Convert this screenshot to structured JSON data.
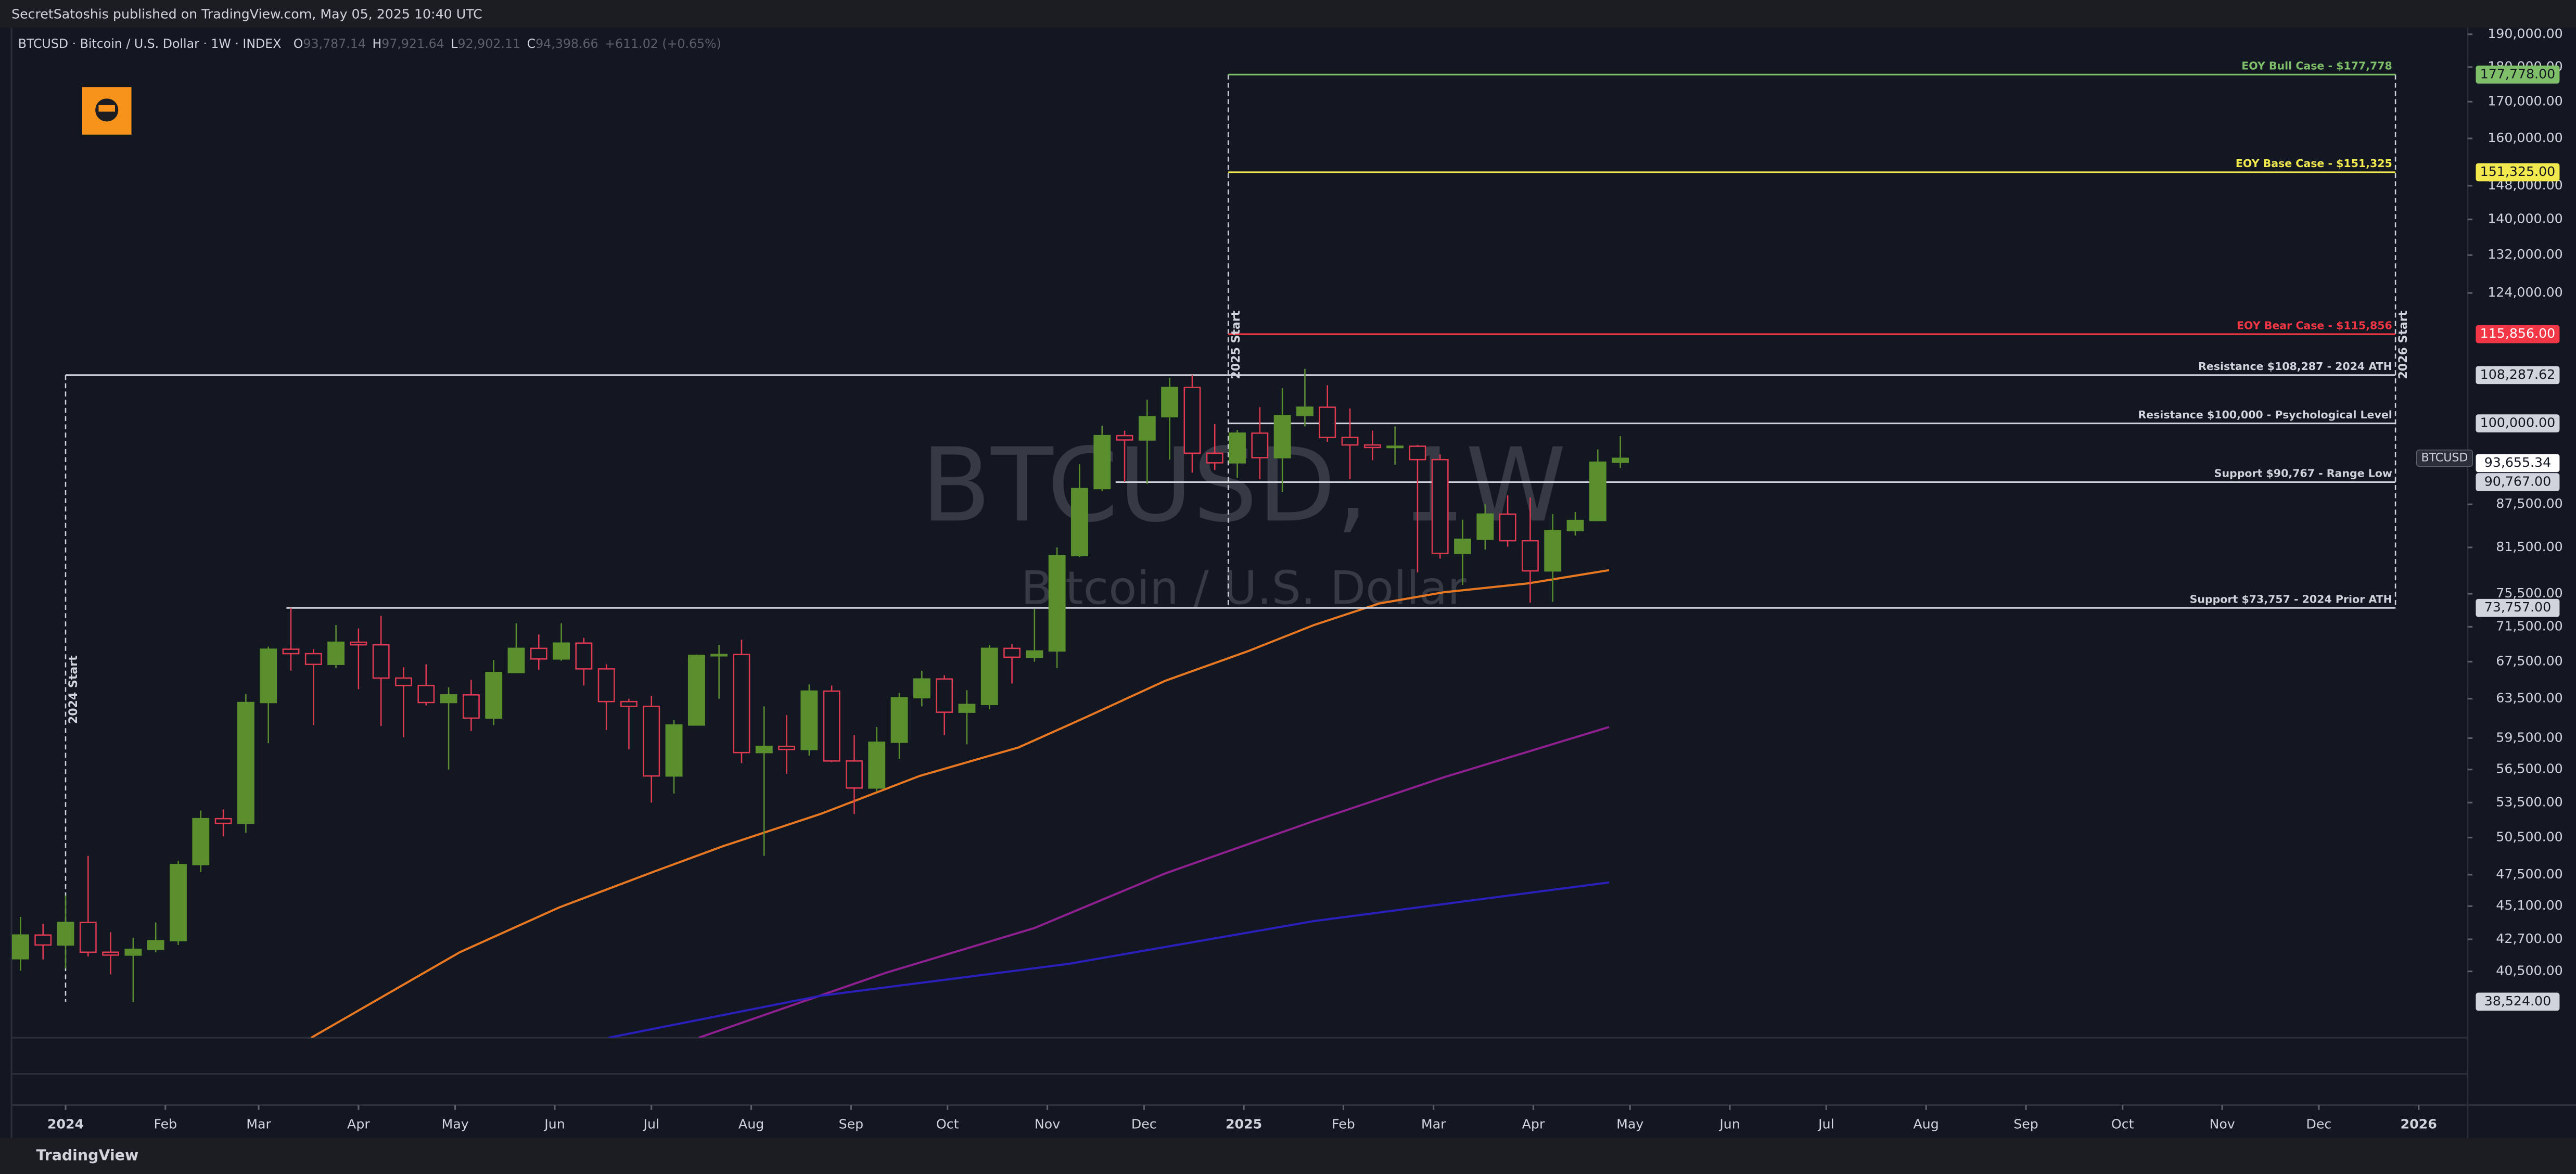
{
  "header": {
    "published": "SecretSatoshis published on TradingView.com, May 05, 2025 10:40 UTC",
    "symbol": "BTCUSD · Bitcoin / U.S. Dollar · 1W · INDEX",
    "ohlc": [
      {
        "key": "O",
        "value": "93,787.14"
      },
      {
        "key": "H",
        "value": "97,921.64"
      },
      {
        "key": "L",
        "value": "92,902.11"
      },
      {
        "key": "C",
        "value": "94,398.66"
      }
    ],
    "change": "+611.02 (+0.65%)"
  },
  "footer": "TradingView",
  "chart_data": {
    "type": "candlestick",
    "title": "BTCUSD, 1W",
    "subtitle": "Bitcoin / U.S. Dollar",
    "x": [
      -2,
      -1,
      0,
      1,
      2,
      3,
      4,
      5,
      6,
      7,
      8,
      9,
      10,
      11,
      12,
      13,
      14,
      15,
      16,
      17,
      18,
      19,
      20,
      21,
      22,
      23,
      24,
      25,
      26,
      27,
      28,
      29,
      30,
      31,
      32,
      33,
      34,
      35,
      36,
      37,
      38,
      39,
      40,
      41,
      42,
      43,
      44,
      45,
      46,
      47,
      48,
      49,
      50,
      51,
      52,
      53,
      54,
      55,
      56,
      57,
      58,
      59,
      60,
      61,
      62,
      63,
      64,
      65,
      66,
      67,
      68,
      69
    ],
    "open": [
      41350,
      43000,
      42300,
      43900,
      41800,
      41600,
      42000,
      42600,
      48300,
      52100,
      51700,
      63100,
      68900,
      68400,
      67200,
      69700,
      69400,
      65700,
      64900,
      63100,
      63900,
      61500,
      66300,
      69000,
      67800,
      69600,
      66700,
      63200,
      62700,
      55900,
      60800,
      68200,
      68300,
      58100,
      58700,
      58400,
      64300,
      57300,
      54800,
      59100,
      63600,
      65600,
      62100,
      62900,
      69000,
      68000,
      68700,
      80400,
      89800,
      98000,
      97300,
      101100,
      106100,
      95200,
      93700,
      98400,
      94500,
      101300,
      102700,
      97700,
      96500,
      96100,
      96300,
      94200,
      80700,
      82600,
      86100,
      82400,
      78400,
      83800,
      85200,
      93787.14
    ],
    "high": [
      44300,
      43800,
      45900,
      49000,
      43200,
      42800,
      43900,
      48600,
      52800,
      52900,
      64000,
      69200,
      73800,
      68900,
      71700,
      71300,
      72800,
      66900,
      67200,
      64700,
      65500,
      67700,
      71900,
      70600,
      71900,
      70200,
      67200,
      63500,
      63800,
      61300,
      68300,
      69400,
      70000,
      62700,
      61800,
      65000,
      64900,
      59800,
      60600,
      64100,
      66500,
      66000,
      64400,
      69400,
      69500,
      73600,
      81500,
      93500,
      99600,
      98800,
      104000,
      107800,
      108300,
      99900,
      98900,
      102700,
      106000,
      109400,
      106500,
      102500,
      98800,
      99500,
      96500,
      95000,
      85300,
      87500,
      88800,
      88500,
      86100,
      86400,
      95800,
      97921.64
    ],
    "low": [
      40550,
      41300,
      40700,
      41500,
      40300,
      38500,
      41800,
      42300,
      47700,
      50600,
      50900,
      59000,
      66500,
      60800,
      66800,
      64500,
      60700,
      59600,
      62800,
      56500,
      60200,
      60800,
      66300,
      66600,
      67600,
      64900,
      60300,
      58400,
      53500,
      54300,
      60800,
      63500,
      57100,
      49000,
      56100,
      57800,
      57200,
      52500,
      54500,
      57500,
      62700,
      59800,
      58900,
      62400,
      65100,
      67500,
      66800,
      80200,
      89400,
      90800,
      90500,
      94200,
      92200,
      92600,
      91400,
      91200,
      89300,
      99500,
      97000,
      91200,
      94100,
      93400,
      78200,
      80000,
      76600,
      81200,
      81600,
      74400,
      74500,
      83100,
      85100,
      92902.11
    ],
    "close": [
      43000,
      42300,
      43900,
      41800,
      41600,
      42000,
      42600,
      48300,
      52100,
      51700,
      63100,
      68900,
      68400,
      67200,
      69700,
      69400,
      65700,
      64900,
      63100,
      63900,
      61500,
      66300,
      69000,
      67800,
      69600,
      66700,
      63200,
      62700,
      55900,
      60800,
      68200,
      68300,
      58100,
      58700,
      58400,
      64300,
      57300,
      54800,
      59100,
      63600,
      65600,
      62100,
      62900,
      69000,
      68000,
      68700,
      80400,
      89800,
      98000,
      97300,
      101100,
      106100,
      95200,
      93700,
      98400,
      94500,
      101300,
      102700,
      97700,
      96500,
      96100,
      96300,
      94200,
      80700,
      82600,
      86100,
      82400,
      78400,
      83800,
      85200,
      93800,
      94398.66
    ],
    "up_color": "#5b8f2e",
    "down_color": "#e03a52",
    "lines": [
      {
        "color": "#e87722",
        "x": [
          10.9,
          17.5,
          21.9,
          26.2,
          29.2,
          33.5,
          37.9,
          42.3,
          45.2,
          48.8,
          52.5,
          55.4,
          58.3,
          61.2,
          64.9,
          68.5
        ],
        "values": [
          36300,
          41800,
          45000,
          47800,
          49800,
          52500,
          55900,
          58600,
          61500,
          65400,
          68700,
          71700,
          74300,
          75700,
          76800,
          78500
        ]
      },
      {
        "color": "#8e1f8e",
        "x": [
          28.1,
          36.4,
          43,
          48.8,
          55.4,
          61.2,
          68.5
        ],
        "values": [
          36300,
          40400,
          43500,
          47600,
          51900,
          55800,
          60600
        ]
      },
      {
        "color": "#2a1fb8",
        "x": [
          24.1,
          33.5,
          44.5,
          55.4,
          68.5
        ],
        "values": [
          36300,
          38900,
          41000,
          44000,
          46900
        ]
      }
    ],
    "levels": [
      {
        "label": "EOY Bull Case - $177,778",
        "value": 177778,
        "tag": "177,778.00",
        "x_from": 51.6,
        "color": "#7fbf6a"
      },
      {
        "label": "EOY Base Case - $151,325",
        "value": 151325,
        "tag": "151,325.00",
        "x_from": 51.6,
        "color": "#f2e94e"
      },
      {
        "label": "EOY Bear Case - $115,856",
        "value": 115856,
        "tag": "115,856.00",
        "x_from": 51.6,
        "color": "#f23645"
      },
      {
        "label": "Resistance $108,287 - 2024 ATH",
        "value": 108287.62,
        "tag": "108,287.62",
        "x_from": 0,
        "color": "#d1d4dc"
      },
      {
        "label": "Resistance $100,000 - Psychological Level",
        "value": 100000,
        "tag": "100,000.00",
        "x_from": 51.6,
        "color": "#d1d4dc"
      },
      {
        "label": "Support $90,767 - Range Low",
        "value": 90767,
        "tag": "90,767.00",
        "x_from": 46.6,
        "color": "#d1d4dc"
      },
      {
        "label": "Support $73,757 - 2024 Prior ATH",
        "value": 73757,
        "tag": "73,757.00",
        "x_from": 9.8,
        "color": "#d1d4dc"
      }
    ],
    "vlines": [
      {
        "label": "2024 Start",
        "x": 0
      },
      {
        "label": "2025 Start",
        "x": 51.6
      },
      {
        "label": "2026 Start",
        "x": 103.4
      }
    ],
    "price_tags": [
      {
        "symbol": "BTCUSD",
        "value": 93655.34,
        "label": "93,655.34"
      },
      {
        "value": 38524,
        "label": "38,524.00"
      }
    ],
    "log_scale": true,
    "ylim": [
      36300,
      192000
    ],
    "yticks": [
      {
        "value": 190000,
        "label": "190,000.00"
      },
      {
        "value": 180000,
        "label": "180,000.00"
      },
      {
        "value": 170000,
        "label": "170,000.00"
      },
      {
        "value": 160000,
        "label": "160,000.00"
      },
      {
        "value": 148000,
        "label": "148,000.00"
      },
      {
        "value": 140000,
        "label": "140,000.00"
      },
      {
        "value": 132000,
        "label": "132,000.00"
      },
      {
        "value": 124000,
        "label": "124,000.00"
      },
      {
        "value": 87500,
        "label": "87,500.00"
      },
      {
        "value": 81500,
        "label": "81,500.00"
      },
      {
        "value": 75500,
        "label": "75,500.00"
      },
      {
        "value": 71500,
        "label": "71,500.00"
      },
      {
        "value": 67500,
        "label": "67,500.00"
      },
      {
        "value": 63500,
        "label": "63,500.00"
      },
      {
        "value": 59500,
        "label": "59,500.00"
      },
      {
        "value": 56500,
        "label": "56,500.00"
      },
      {
        "value": 53500,
        "label": "53,500.00"
      },
      {
        "value": 50500,
        "label": "50,500.00"
      },
      {
        "value": 47500,
        "label": "47,500.00"
      },
      {
        "value": 45100,
        "label": "45,100.00"
      },
      {
        "value": 42700,
        "label": "42,700.00"
      },
      {
        "value": 40500,
        "label": "40,500.00"
      }
    ],
    "xlim": [
      -2.4,
      106.6
    ],
    "xticks": [
      {
        "value": 0,
        "label": "2024"
      },
      {
        "value": 4.43,
        "label": "Feb"
      },
      {
        "value": 8.57,
        "label": "Mar"
      },
      {
        "value": 13,
        "label": "Apr"
      },
      {
        "value": 17.29,
        "label": "May"
      },
      {
        "value": 21.71,
        "label": "Jun"
      },
      {
        "value": 26,
        "label": "Jul"
      },
      {
        "value": 30.43,
        "label": "Aug"
      },
      {
        "value": 34.86,
        "label": "Sep"
      },
      {
        "value": 39.14,
        "label": "Oct"
      },
      {
        "value": 43.57,
        "label": "Nov"
      },
      {
        "value": 47.86,
        "label": "Dec"
      },
      {
        "value": 52.29,
        "label": "2025"
      },
      {
        "value": 56.71,
        "label": "Feb"
      },
      {
        "value": 60.71,
        "label": "Mar"
      },
      {
        "value": 65.14,
        "label": "Apr"
      },
      {
        "value": 69.43,
        "label": "May"
      },
      {
        "value": 73.86,
        "label": "Jun"
      },
      {
        "value": 78.14,
        "label": "Jul"
      },
      {
        "value": 82.57,
        "label": "Aug"
      },
      {
        "value": 87,
        "label": "Sep"
      },
      {
        "value": 91.29,
        "label": "Oct"
      },
      {
        "value": 95.71,
        "label": "Nov"
      },
      {
        "value": 100,
        "label": "Dec"
      },
      {
        "value": 104.43,
        "label": "2026"
      }
    ]
  }
}
